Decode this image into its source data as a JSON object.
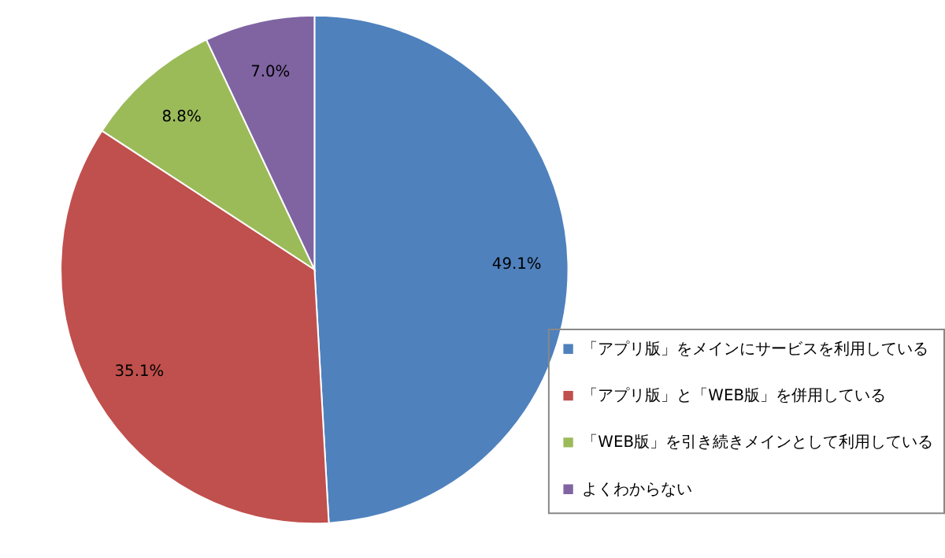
{
  "chart_data": {
    "type": "pie",
    "categories": [
      "「アプリ版」をメインにサービスを利用している",
      "「アプリ版」と「WEB版」を併用している",
      "「WEB版」を引き続きメインとして利用している",
      "よくわからない"
    ],
    "values": [
      49.1,
      35.1,
      8.8,
      7.0
    ],
    "value_labels": [
      "49.1%",
      "35.1%",
      "8.8%",
      "7.0%"
    ],
    "colors": [
      "#4f81bd",
      "#c0504d",
      "#9bbb59",
      "#8064a2"
    ],
    "legend": "bottom right"
  }
}
